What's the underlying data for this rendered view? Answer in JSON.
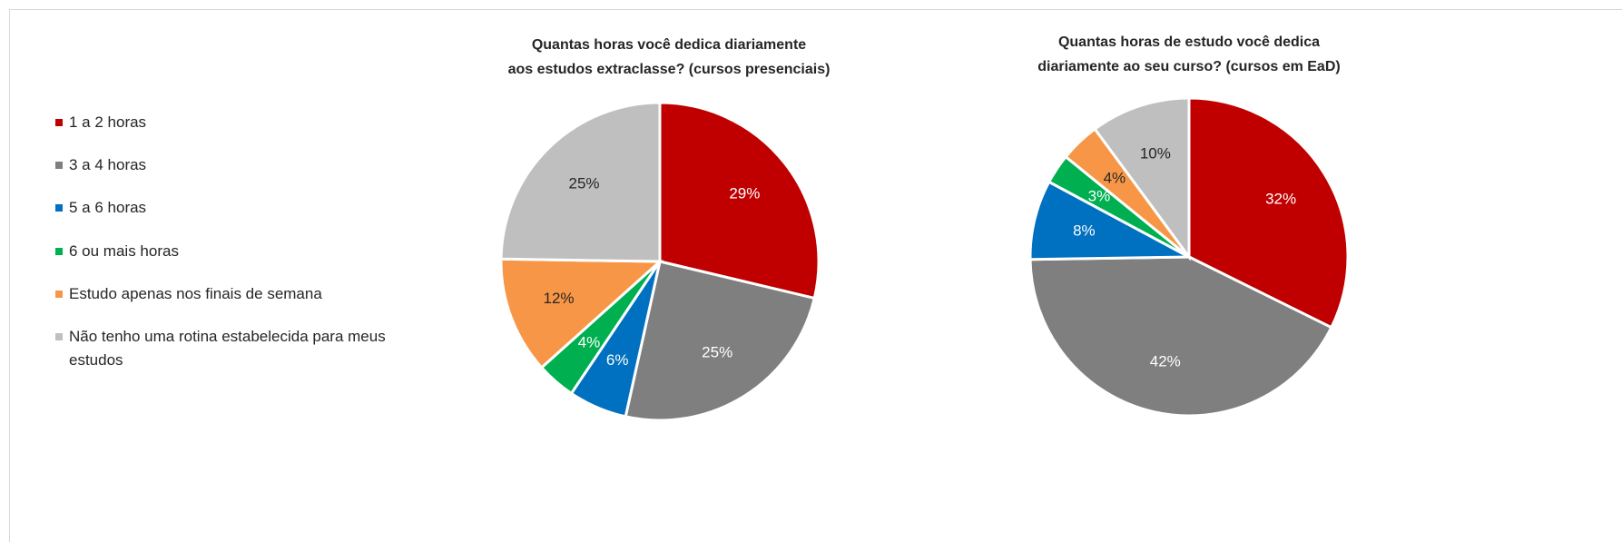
{
  "legend": {
    "categories": [
      "1 a 2 horas",
      "3 a 4 horas",
      "5 a 6 horas",
      "6 ou mais horas",
      "Estudo apenas nos finais de semana",
      "Não tenho uma rotina estabelecida para meus estudos"
    ],
    "colors": [
      "#c00000",
      "#7f7f7f",
      "#0070c0",
      "#00b050",
      "#f79646",
      "#bfbfbf"
    ],
    "label_colors": [
      "#ffffff",
      "#ffffff",
      "#ffffff",
      "#ffffff",
      "#262626",
      "#262626"
    ]
  },
  "chart_data": [
    {
      "type": "pie",
      "title": [
        "Quantas horas você dedica diariamente",
        "aos estudos extraclasse? (cursos presenciais)"
      ],
      "values": [
        29,
        25,
        6,
        4,
        12,
        25
      ],
      "value_labels": [
        "29%",
        "25%",
        "6%",
        "4%",
        "12%",
        "25%"
      ]
    },
    {
      "type": "pie",
      "title": [
        "Quantas horas de estudo você dedica",
        "diariamente ao seu curso? (cursos em EaD)"
      ],
      "values": [
        32,
        42,
        8,
        3,
        4,
        10
      ],
      "value_labels": [
        "32%",
        "42%",
        "8%",
        "3%",
        "4%",
        "10%"
      ]
    }
  ]
}
